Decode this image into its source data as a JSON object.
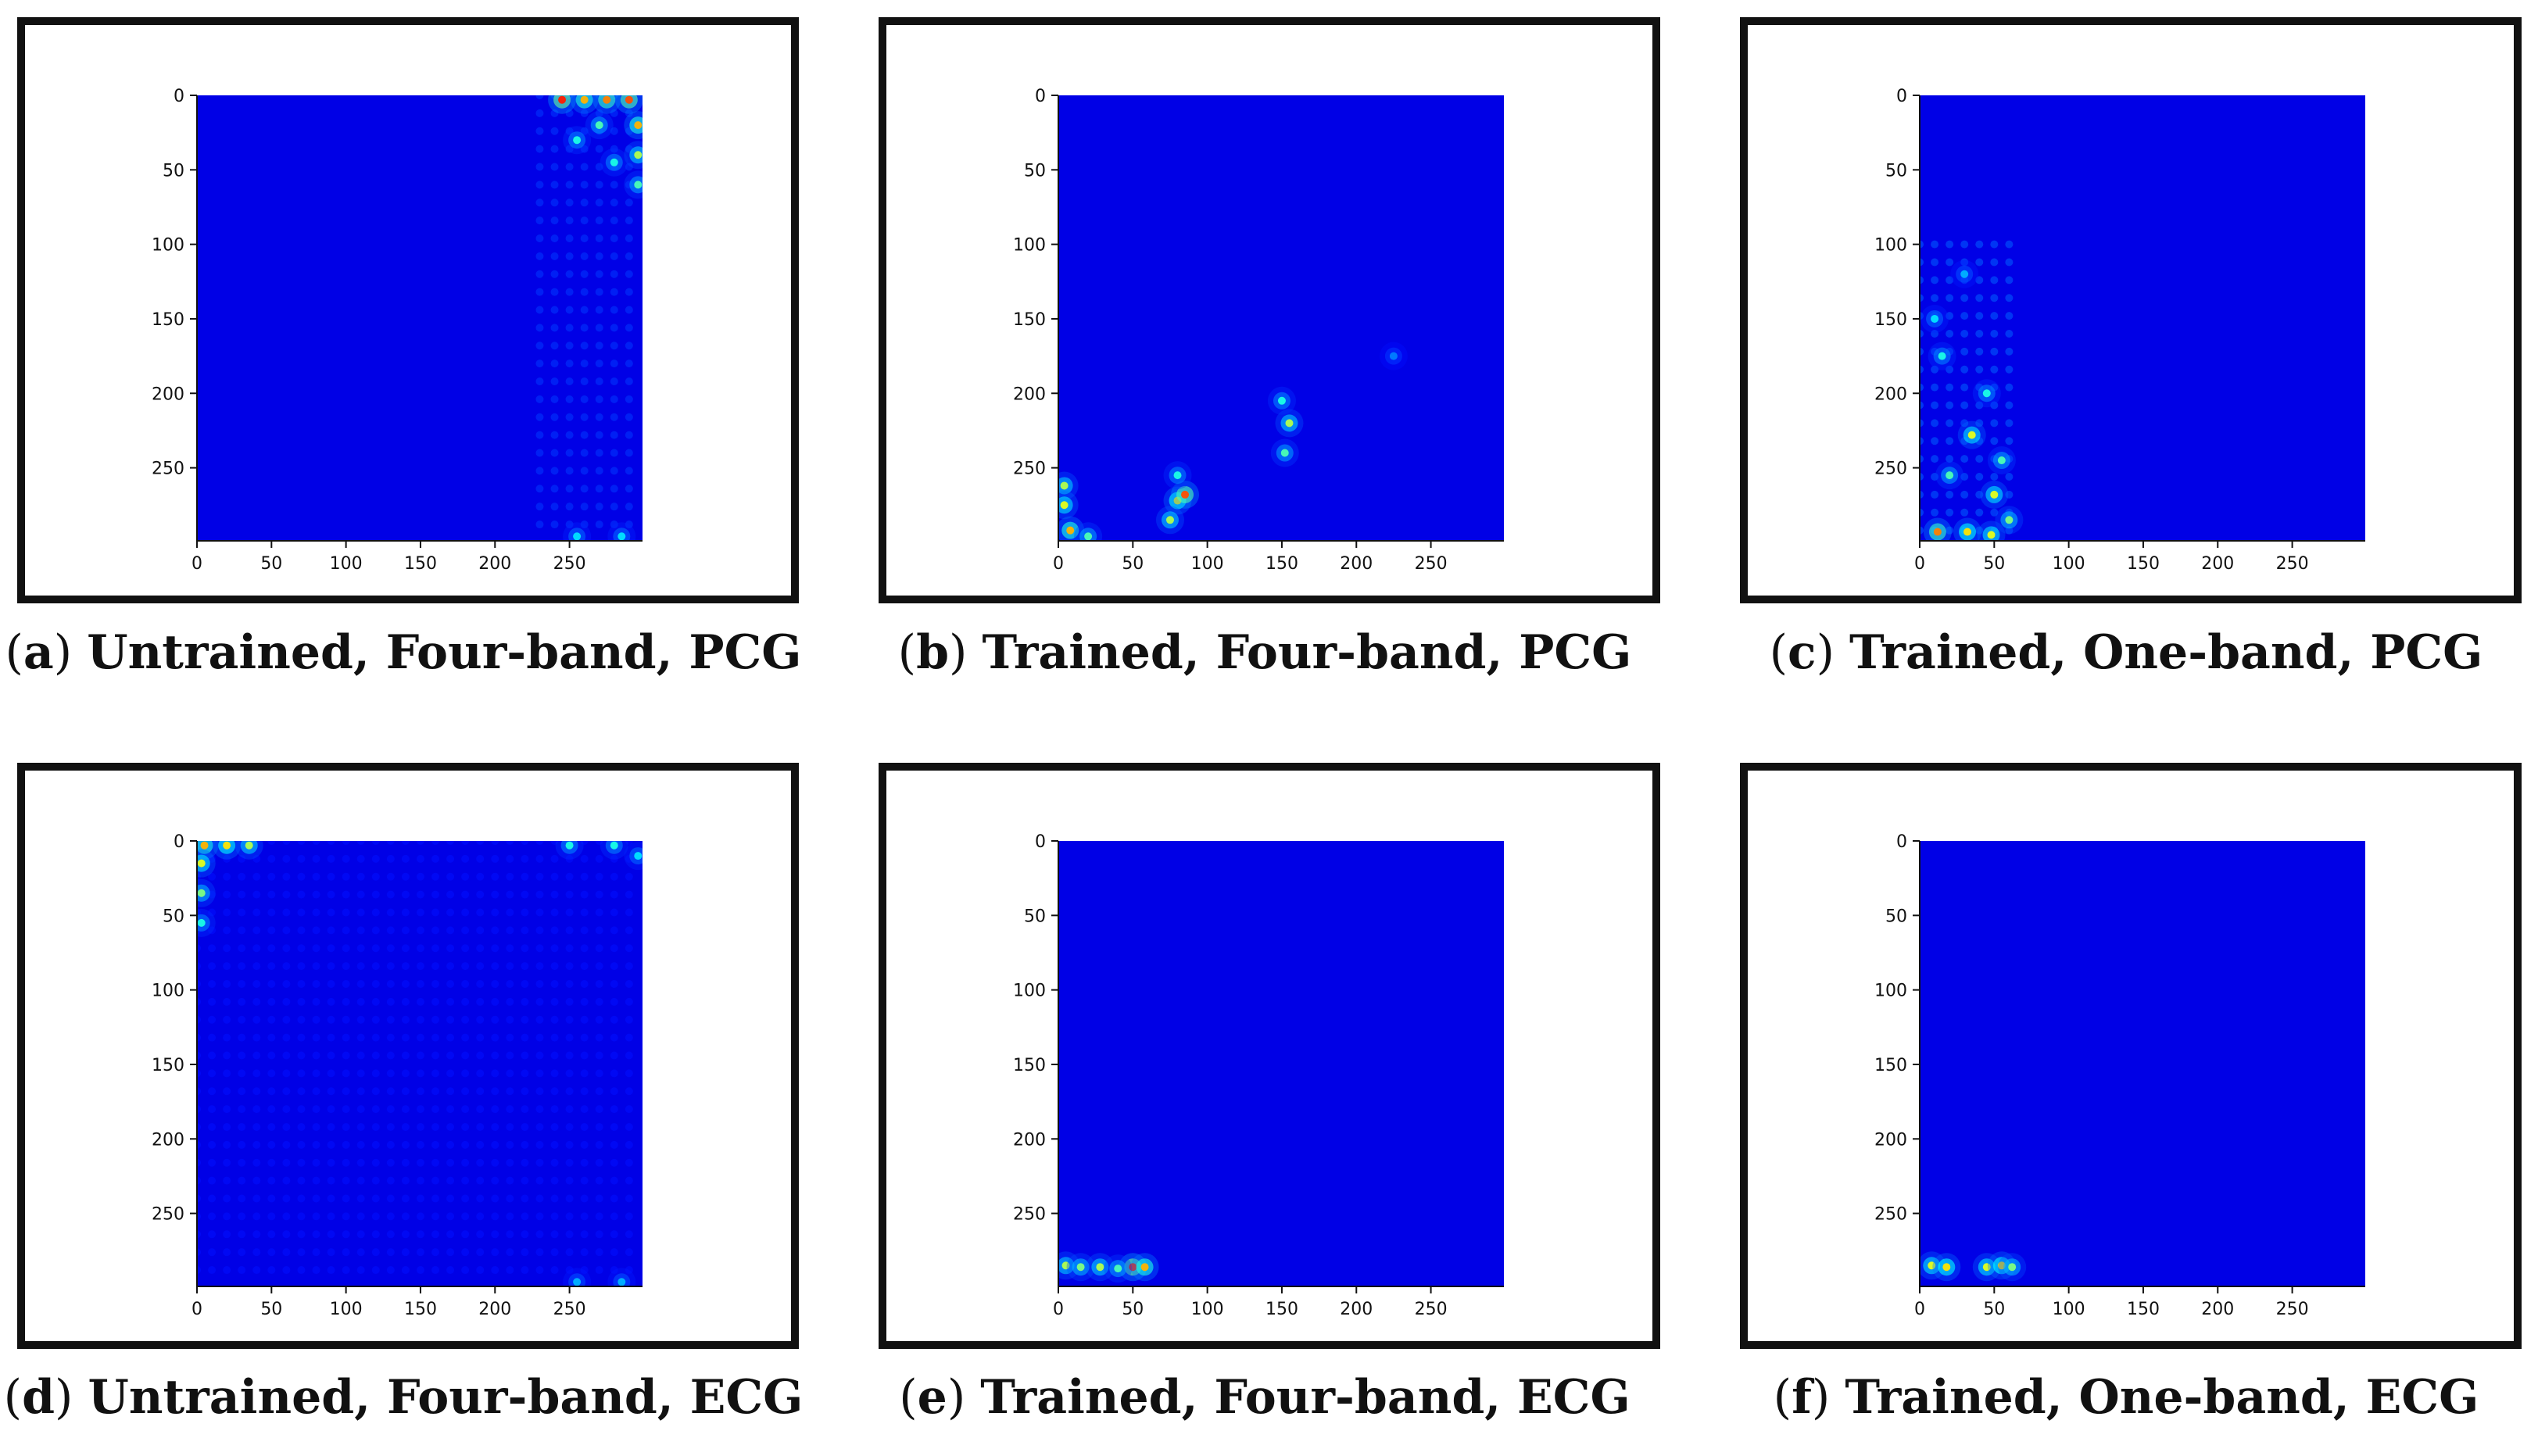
{
  "figure": {
    "panels": [
      {
        "id": "a",
        "letter": "a",
        "caption": "Untrained, Four-band, PCG"
      },
      {
        "id": "b",
        "letter": "b",
        "caption": "Trained, Four-band, PCG"
      },
      {
        "id": "c",
        "letter": "c",
        "caption": "Trained, One-band, PCG"
      },
      {
        "id": "d",
        "letter": "d",
        "caption": "Untrained, Four-band, ECG"
      },
      {
        "id": "e",
        "letter": "e",
        "caption": "Trained, Four-band, ECG"
      },
      {
        "id": "f",
        "letter": "f",
        "caption": "Trained, One-band, ECG"
      }
    ]
  },
  "chart_data": [
    {
      "type": "heatmap",
      "title": "",
      "colormap": "jet",
      "xlim": [
        0,
        299
      ],
      "ylim": [
        299,
        0
      ],
      "xticks": [
        "0",
        "50",
        "100",
        "150",
        "200",
        "250"
      ],
      "yticks": [
        "0",
        "50",
        "100",
        "150",
        "200",
        "250"
      ],
      "hotspots": [
        {
          "x": 245,
          "y": 3,
          "value": 0.75
        },
        {
          "x": 260,
          "y": 3,
          "value": 0.6
        },
        {
          "x": 275,
          "y": 3,
          "value": 0.65
        },
        {
          "x": 290,
          "y": 3,
          "value": 0.7
        },
        {
          "x": 296,
          "y": 20,
          "value": 0.6
        },
        {
          "x": 296,
          "y": 40,
          "value": 0.45
        },
        {
          "x": 296,
          "y": 60,
          "value": 0.35
        },
        {
          "x": 270,
          "y": 20,
          "value": 0.35
        },
        {
          "x": 255,
          "y": 30,
          "value": 0.3
        },
        {
          "x": 280,
          "y": 45,
          "value": 0.3
        },
        {
          "x": 255,
          "y": 296,
          "value": 0.25
        },
        {
          "x": 285,
          "y": 296,
          "value": 0.25
        }
      ],
      "texture": {
        "x": [
          230,
          299
        ],
        "y": [
          0,
          299
        ],
        "level": 0.18
      }
    },
    {
      "type": "heatmap",
      "title": "",
      "colormap": "jet",
      "xlim": [
        0,
        299
      ],
      "ylim": [
        299,
        0
      ],
      "xticks": [
        "0",
        "50",
        "100",
        "150",
        "200",
        "250"
      ],
      "yticks": [
        "0",
        "50",
        "100",
        "150",
        "200",
        "250"
      ],
      "hotspots": [
        {
          "x": 4,
          "y": 262,
          "value": 0.45
        },
        {
          "x": 4,
          "y": 275,
          "value": 0.5
        },
        {
          "x": 8,
          "y": 292,
          "value": 0.6
        },
        {
          "x": 20,
          "y": 296,
          "value": 0.35
        },
        {
          "x": 80,
          "y": 272,
          "value": 0.55
        },
        {
          "x": 85,
          "y": 268,
          "value": 0.7
        },
        {
          "x": 75,
          "y": 285,
          "value": 0.45
        },
        {
          "x": 80,
          "y": 255,
          "value": 0.3
        },
        {
          "x": 155,
          "y": 220,
          "value": 0.45
        },
        {
          "x": 152,
          "y": 240,
          "value": 0.35
        },
        {
          "x": 150,
          "y": 205,
          "value": 0.3
        },
        {
          "x": 225,
          "y": 175,
          "value": 0.15
        }
      ],
      "texture": null
    },
    {
      "type": "heatmap",
      "title": "",
      "colormap": "jet",
      "xlim": [
        0,
        299
      ],
      "ylim": [
        299,
        0
      ],
      "xticks": [
        "0",
        "50",
        "100",
        "150",
        "200",
        "250"
      ],
      "yticks": [
        "0",
        "50",
        "100",
        "150",
        "200",
        "250"
      ],
      "hotspots": [
        {
          "x": 12,
          "y": 293,
          "value": 0.65
        },
        {
          "x": 32,
          "y": 293,
          "value": 0.55
        },
        {
          "x": 48,
          "y": 295,
          "value": 0.5
        },
        {
          "x": 35,
          "y": 228,
          "value": 0.5
        },
        {
          "x": 50,
          "y": 268,
          "value": 0.5
        },
        {
          "x": 20,
          "y": 255,
          "value": 0.35
        },
        {
          "x": 45,
          "y": 200,
          "value": 0.3
        },
        {
          "x": 15,
          "y": 175,
          "value": 0.3
        },
        {
          "x": 55,
          "y": 245,
          "value": 0.35
        },
        {
          "x": 10,
          "y": 150,
          "value": 0.25
        },
        {
          "x": 30,
          "y": 120,
          "value": 0.2
        },
        {
          "x": 60,
          "y": 285,
          "value": 0.4
        }
      ],
      "texture": {
        "x": [
          0,
          65
        ],
        "y": [
          100,
          299
        ],
        "level": 0.22
      }
    },
    {
      "type": "heatmap",
      "title": "",
      "colormap": "jet",
      "xlim": [
        0,
        299
      ],
      "ylim": [
        299,
        0
      ],
      "xticks": [
        "0",
        "50",
        "100",
        "150",
        "200",
        "250"
      ],
      "yticks": [
        "0",
        "50",
        "100",
        "150",
        "200",
        "250"
      ],
      "hotspots": [
        {
          "x": 5,
          "y": 3,
          "value": 0.6
        },
        {
          "x": 20,
          "y": 3,
          "value": 0.55
        },
        {
          "x": 35,
          "y": 3,
          "value": 0.45
        },
        {
          "x": 3,
          "y": 15,
          "value": 0.5
        },
        {
          "x": 3,
          "y": 35,
          "value": 0.4
        },
        {
          "x": 3,
          "y": 55,
          "value": 0.3
        },
        {
          "x": 250,
          "y": 3,
          "value": 0.3
        },
        {
          "x": 280,
          "y": 3,
          "value": 0.3
        },
        {
          "x": 296,
          "y": 10,
          "value": 0.25
        },
        {
          "x": 255,
          "y": 296,
          "value": 0.2
        },
        {
          "x": 285,
          "y": 296,
          "value": 0.2
        }
      ],
      "texture": {
        "x": [
          0,
          299
        ],
        "y": [
          0,
          299
        ],
        "level": 0.14
      }
    },
    {
      "type": "heatmap",
      "title": "",
      "colormap": "jet",
      "xlim": [
        0,
        299
      ],
      "ylim": [
        299,
        0
      ],
      "xticks": [
        "0",
        "50",
        "100",
        "150",
        "200",
        "250"
      ],
      "yticks": [
        "0",
        "50",
        "100",
        "150",
        "200",
        "250"
      ],
      "hotspots": [
        {
          "x": 5,
          "y": 285,
          "value": 0.45
        },
        {
          "x": 15,
          "y": 286,
          "value": 0.4
        },
        {
          "x": 28,
          "y": 286,
          "value": 0.45
        },
        {
          "x": 50,
          "y": 286,
          "value": 0.75
        },
        {
          "x": 58,
          "y": 286,
          "value": 0.6
        },
        {
          "x": 40,
          "y": 287,
          "value": 0.35
        }
      ],
      "texture": null
    },
    {
      "type": "heatmap",
      "title": "",
      "colormap": "jet",
      "xlim": [
        0,
        299
      ],
      "ylim": [
        299,
        0
      ],
      "xticks": [
        "0",
        "50",
        "100",
        "150",
        "200",
        "250"
      ],
      "yticks": [
        "0",
        "50",
        "100",
        "150",
        "200",
        "250"
      ],
      "hotspots": [
        {
          "x": 8,
          "y": 285,
          "value": 0.5
        },
        {
          "x": 18,
          "y": 286,
          "value": 0.55
        },
        {
          "x": 45,
          "y": 286,
          "value": 0.5
        },
        {
          "x": 55,
          "y": 285,
          "value": 0.55
        },
        {
          "x": 62,
          "y": 286,
          "value": 0.4
        }
      ],
      "texture": null
    }
  ]
}
